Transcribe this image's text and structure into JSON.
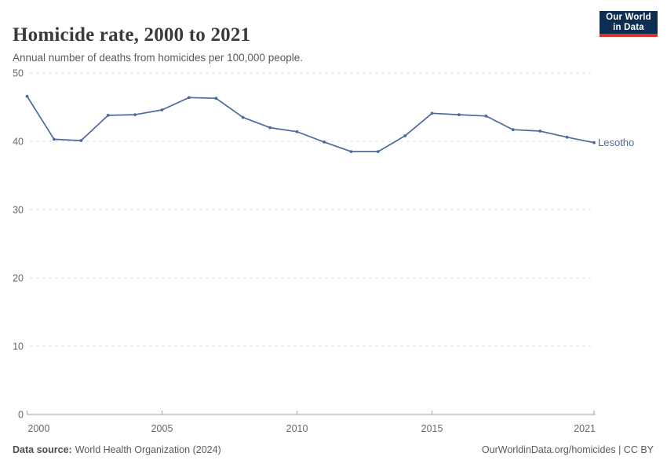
{
  "header": {
    "title": "Homicide rate, 2000 to 2021",
    "subtitle": "Annual number of deaths from homicides per 100,000 people.",
    "logo": {
      "line1": "Our World",
      "line2": "in Data"
    }
  },
  "chart_data": {
    "type": "line",
    "title": "Homicide rate, 2000 to 2021",
    "xlabel": "",
    "ylabel": "",
    "x": [
      2000,
      2001,
      2002,
      2003,
      2004,
      2005,
      2006,
      2007,
      2008,
      2009,
      2010,
      2011,
      2012,
      2013,
      2014,
      2015,
      2016,
      2017,
      2018,
      2019,
      2020,
      2021
    ],
    "series": [
      {
        "name": "Lesotho",
        "color": "#4C6A9C",
        "values": [
          46.6,
          40.3,
          40.1,
          43.8,
          43.9,
          44.6,
          46.4,
          46.3,
          43.5,
          42.0,
          41.4,
          39.9,
          38.5,
          38.5,
          40.8,
          44.1,
          43.9,
          43.7,
          41.7,
          41.5,
          40.6,
          39.8
        ]
      }
    ],
    "x_ticks": [
      2000,
      2005,
      2010,
      2015,
      2021
    ],
    "y_ticks": [
      0,
      10,
      20,
      30,
      40,
      50
    ],
    "xlim": [
      2000,
      2021
    ],
    "ylim": [
      0,
      50
    ],
    "grid": "horizontal-dashed",
    "legend_position": "end-of-line-label",
    "colors": {
      "grid": "#dcdcdc",
      "axis": "#a1a1a1",
      "tick_text": "#666666"
    }
  },
  "footer": {
    "source_label": "Data source:",
    "source_value": "World Health Organization (2024)",
    "attribution": "OurWorldinData.org/homicides | CC BY"
  }
}
